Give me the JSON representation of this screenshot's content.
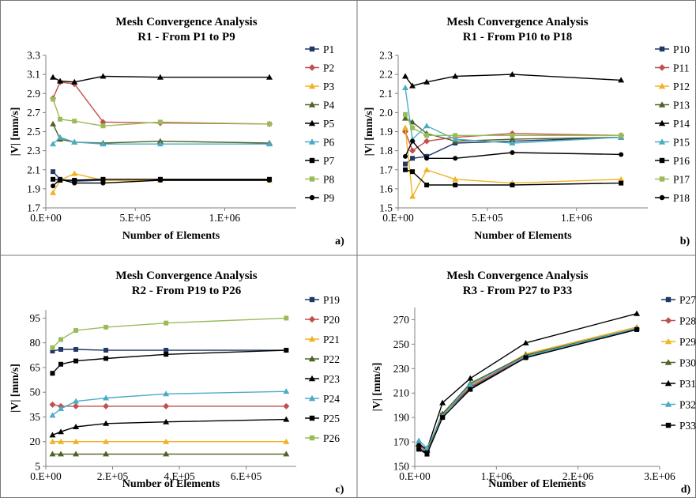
{
  "panel_letters": [
    "a)",
    "b)",
    "c)",
    "d)"
  ],
  "chart_data": [
    {
      "type": "line",
      "title": "Mesh Convergence Analysis",
      "subtitle": "R1 - From P1 to P9",
      "xlabel": "Number of Elements",
      "ylabel": "|V| [mm/s]",
      "xlim": [
        0,
        1400000
      ],
      "ylim": [
        1.7,
        3.3
      ],
      "xticks": [
        0,
        500000,
        1000000
      ],
      "xtick_labels": [
        "0.E+00",
        "5.E+05",
        "1.E+06"
      ],
      "yticks": [
        1.7,
        1.9,
        2.1,
        2.3,
        2.5,
        2.7,
        2.9,
        3.1,
        3.3
      ],
      "ytick_labels": [
        "1.7",
        "1.9",
        "2.1",
        "2.3",
        "2.5",
        "2.7",
        "2.9",
        "3.1",
        "3.3"
      ],
      "legend_position": "right",
      "x": [
        40000,
        80000,
        160000,
        320000,
        640000,
        1250000
      ],
      "series": [
        {
          "name": "P1",
          "color": "#1f3864",
          "marker": "square",
          "values": [
            2.08,
            2.0,
            1.98,
            1.99,
            1.99,
            1.99
          ]
        },
        {
          "name": "P2",
          "color": "#c0504d",
          "marker": "diamond",
          "values": [
            2.85,
            3.02,
            3.0,
            2.6,
            2.59,
            2.58
          ]
        },
        {
          "name": "P3",
          "color": "#f0b323",
          "marker": "triangle",
          "values": [
            1.86,
            1.99,
            2.06,
            1.99,
            1.99,
            1.99
          ]
        },
        {
          "name": "P4",
          "color": "#4f6228",
          "marker": "triangle",
          "values": [
            2.58,
            2.42,
            2.39,
            2.38,
            2.4,
            2.38
          ]
        },
        {
          "name": "P5",
          "color": "#000000",
          "marker": "triangle",
          "values": [
            3.07,
            3.03,
            3.02,
            3.08,
            3.07,
            3.07
          ]
        },
        {
          "name": "P6",
          "color": "#4bacc6",
          "marker": "triangle",
          "values": [
            2.37,
            2.44,
            2.39,
            2.37,
            2.37,
            2.37
          ]
        },
        {
          "name": "P7",
          "color": "#000000",
          "marker": "square",
          "values": [
            2.0,
            1.99,
            1.99,
            2.0,
            2.0,
            2.0
          ]
        },
        {
          "name": "P8",
          "color": "#9bbb59",
          "marker": "square",
          "values": [
            2.84,
            2.63,
            2.61,
            2.56,
            2.6,
            2.58
          ]
        },
        {
          "name": "P9",
          "color": "#000000",
          "marker": "circle",
          "values": [
            1.93,
            2.0,
            1.96,
            1.96,
            1.99,
            1.99
          ]
        }
      ]
    },
    {
      "type": "line",
      "title": "Mesh Convergence Analysis",
      "subtitle": "R1 - From P10 to P18",
      "xlabel": "Number of Elements",
      "ylabel": "|V| [mm/s]",
      "xlim": [
        0,
        1400000
      ],
      "ylim": [
        1.5,
        2.3
      ],
      "xticks": [
        0,
        500000,
        1000000
      ],
      "xtick_labels": [
        "0.E+00",
        "5.E+05",
        "1.E+06"
      ],
      "yticks": [
        1.5,
        1.6,
        1.7,
        1.8,
        1.9,
        2.0,
        2.1,
        2.2,
        2.3
      ],
      "ytick_labels": [
        "1.5",
        "1.6",
        "1.7",
        "1.8",
        "1.9",
        "2.0",
        "2.1",
        "2.2",
        "2.3"
      ],
      "legend_position": "right",
      "x": [
        40000,
        80000,
        160000,
        320000,
        640000,
        1250000
      ],
      "series": [
        {
          "name": "P10",
          "color": "#1f3864",
          "marker": "square",
          "values": [
            1.73,
            1.76,
            1.77,
            1.84,
            1.85,
            1.87
          ]
        },
        {
          "name": "P11",
          "color": "#c0504d",
          "marker": "diamond",
          "values": [
            1.9,
            1.8,
            1.85,
            1.87,
            1.89,
            1.88
          ]
        },
        {
          "name": "P12",
          "color": "#f0b323",
          "marker": "triangle",
          "values": [
            1.92,
            1.56,
            1.7,
            1.65,
            1.63,
            1.65
          ]
        },
        {
          "name": "P13",
          "color": "#4f6228",
          "marker": "triangle",
          "values": [
            1.97,
            1.95,
            1.89,
            1.85,
            1.86,
            1.87
          ]
        },
        {
          "name": "P14",
          "color": "#000000",
          "marker": "triangle",
          "values": [
            2.19,
            2.14,
            2.16,
            2.19,
            2.2,
            2.17
          ]
        },
        {
          "name": "P15",
          "color": "#4bacc6",
          "marker": "triangle",
          "values": [
            2.13,
            1.86,
            1.93,
            1.86,
            1.84,
            1.87
          ]
        },
        {
          "name": "P16",
          "color": "#000000",
          "marker": "square",
          "values": [
            1.7,
            1.69,
            1.62,
            1.62,
            1.62,
            1.63
          ]
        },
        {
          "name": "P17",
          "color": "#9bbb59",
          "marker": "square",
          "values": [
            1.99,
            1.92,
            1.88,
            1.88,
            1.88,
            1.88
          ]
        },
        {
          "name": "P18",
          "color": "#000000",
          "marker": "circle",
          "values": [
            1.77,
            1.85,
            1.76,
            1.76,
            1.79,
            1.78
          ]
        }
      ]
    },
    {
      "type": "line",
      "title": "Mesh Convergence Analysis",
      "subtitle": "R2 - From P19 to P26",
      "xlabel": "Number of Elements",
      "ylabel": "|V| [mm/s]",
      "xlim": [
        0,
        750000
      ],
      "ylim": [
        5,
        100
      ],
      "xticks": [
        0,
        200000,
        400000,
        600000
      ],
      "xtick_labels": [
        "0.E+00",
        "2.E+05",
        "4.E+05",
        "6.E+05"
      ],
      "yticks": [
        5,
        20,
        35,
        50,
        65,
        80,
        95
      ],
      "ytick_labels": [
        "5",
        "20",
        "35",
        "50",
        "65",
        "80",
        "95"
      ],
      "legend_position": "right",
      "x": [
        20000,
        45000,
        90000,
        180000,
        360000,
        720000
      ],
      "series": [
        {
          "name": "P19",
          "color": "#1f3864",
          "marker": "square",
          "values": [
            75,
            76,
            76,
            75.5,
            75.5,
            75.5
          ]
        },
        {
          "name": "P20",
          "color": "#c0504d",
          "marker": "diamond",
          "values": [
            42.5,
            41.5,
            41.5,
            41.5,
            41.5,
            41.5
          ]
        },
        {
          "name": "P21",
          "color": "#f0b323",
          "marker": "triangle",
          "values": [
            20,
            20,
            20,
            20,
            20,
            20
          ]
        },
        {
          "name": "P22",
          "color": "#4f6228",
          "marker": "triangle",
          "values": [
            12.5,
            12.5,
            12.5,
            12.5,
            12.5,
            12.5
          ]
        },
        {
          "name": "P23",
          "color": "#000000",
          "marker": "triangle",
          "values": [
            24,
            26,
            29,
            31,
            32,
            33.5
          ]
        },
        {
          "name": "P24",
          "color": "#4bacc6",
          "marker": "triangle",
          "values": [
            36,
            40,
            44.5,
            46.5,
            49,
            50.5
          ]
        },
        {
          "name": "P25",
          "color": "#000000",
          "marker": "square",
          "values": [
            61.5,
            67,
            69,
            70.5,
            73,
            75.5
          ]
        },
        {
          "name": "P26",
          "color": "#9bbb59",
          "marker": "square",
          "values": [
            77,
            82,
            87.5,
            89.5,
            92,
            95
          ]
        }
      ]
    },
    {
      "type": "line",
      "title": "Mesh Convergence Analysis",
      "subtitle": "R3 - From P27 to P33",
      "xlabel": "Number of Elements",
      "ylabel": "|V| [mm/s]",
      "xlim": [
        0,
        3000000
      ],
      "ylim": [
        150,
        280
      ],
      "xticks": [
        0,
        1000000,
        2000000,
        3000000
      ],
      "xtick_labels": [
        "0.E+00",
        "1.E+06",
        "2.E+06",
        "3.E+06"
      ],
      "yticks": [
        150,
        170,
        190,
        210,
        230,
        250,
        270
      ],
      "ytick_labels": [
        "150",
        "170",
        "190",
        "210",
        "230",
        "250",
        "270"
      ],
      "legend_position": "right",
      "x": [
        50000,
        150000,
        340000,
        680000,
        1360000,
        2720000
      ],
      "series": [
        {
          "name": "P27",
          "color": "#1f3864",
          "marker": "square",
          "values": [
            165,
            161,
            192,
            214,
            239,
            262
          ]
        },
        {
          "name": "P28",
          "color": "#c0504d",
          "marker": "diamond",
          "values": [
            167,
            162,
            192,
            215,
            240,
            263
          ]
        },
        {
          "name": "P29",
          "color": "#f0b323",
          "marker": "triangle",
          "values": [
            168,
            163,
            193,
            216,
            242,
            264
          ]
        },
        {
          "name": "P30",
          "color": "#4f6228",
          "marker": "triangle",
          "values": [
            169,
            163,
            193,
            218,
            241,
            263
          ]
        },
        {
          "name": "P31",
          "color": "#000000",
          "marker": "triangle",
          "values": [
            168,
            164,
            202,
            222,
            251,
            275
          ]
        },
        {
          "name": "P32",
          "color": "#4bacc6",
          "marker": "triangle",
          "values": [
            171,
            165,
            191,
            217,
            240,
            263
          ]
        },
        {
          "name": "P33",
          "color": "#000000",
          "marker": "square",
          "values": [
            164,
            160,
            190,
            213,
            239,
            262
          ]
        }
      ]
    }
  ]
}
